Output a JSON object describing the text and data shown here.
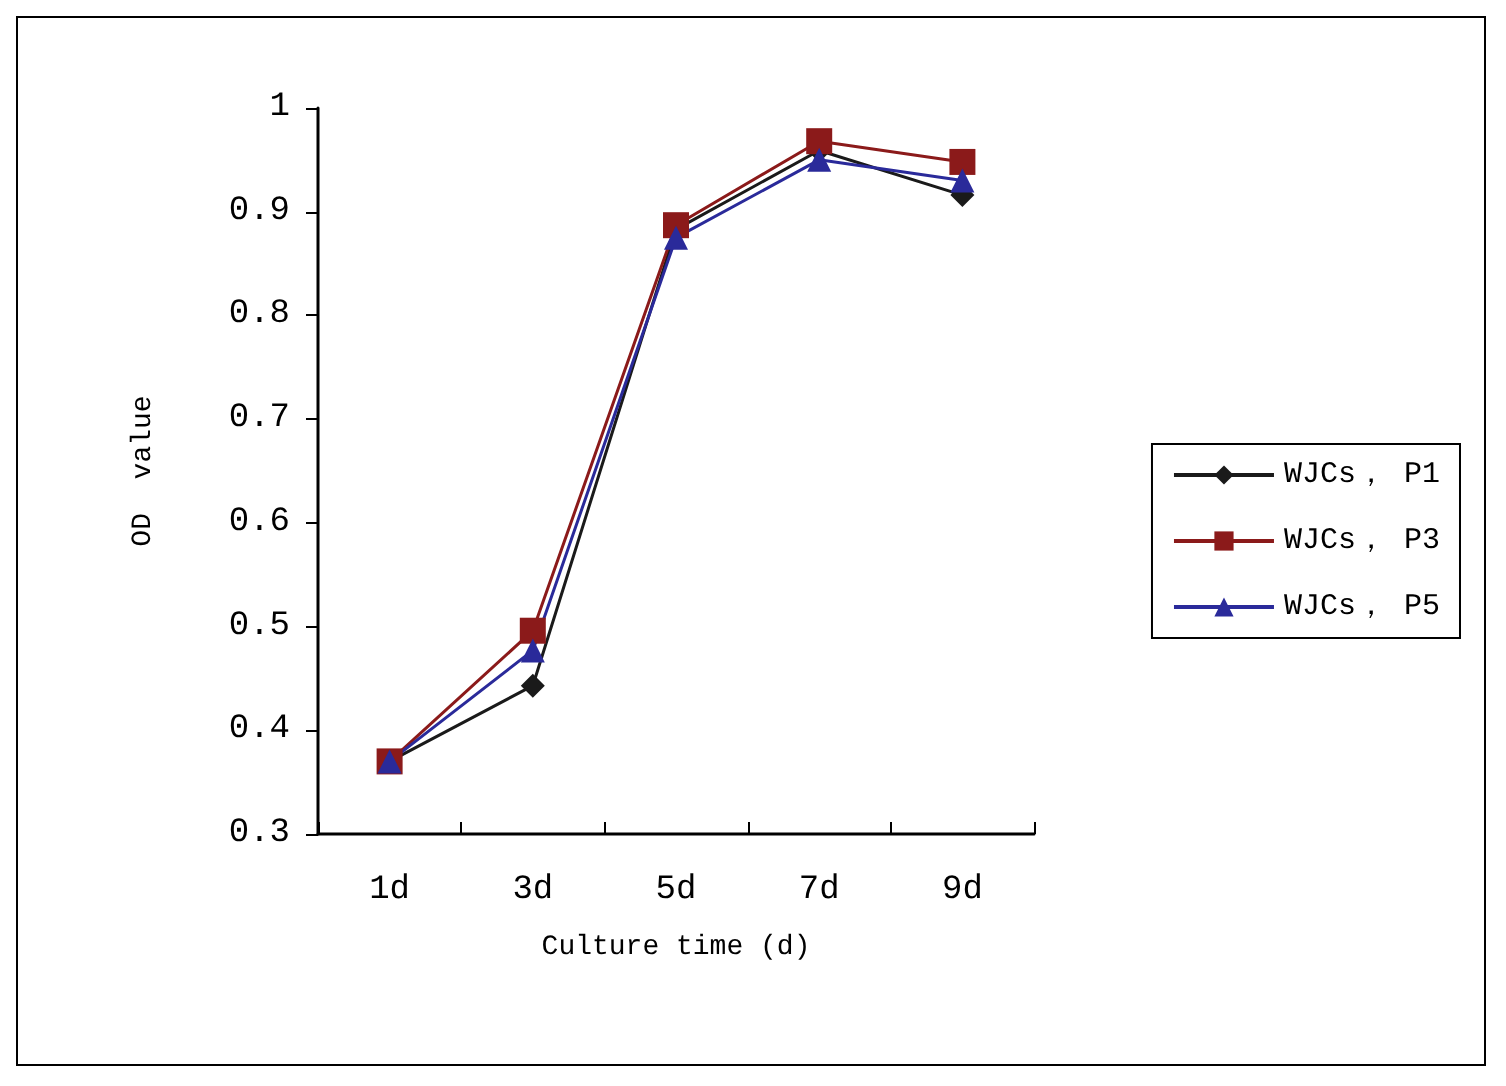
{
  "chart_data": {
    "type": "line",
    "xlabel": "Culture time (d)",
    "ylabel": "OD  value",
    "categories": [
      "1d",
      "3d",
      "5d",
      "7d",
      "9d"
    ],
    "series": [
      {
        "name": "WJCs， P1",
        "color": "#1a1a1a",
        "marker": "diamond",
        "values": [
          0.37,
          0.443,
          0.883,
          0.959,
          0.916
        ]
      },
      {
        "name": "WJCs， P3",
        "color": "#8b1a1a",
        "marker": "square",
        "values": [
          0.37,
          0.496,
          0.887,
          0.968,
          0.948
        ]
      },
      {
        "name": "WJCs， P5",
        "color": "#2a2a9a",
        "marker": "triangle",
        "values": [
          0.37,
          0.477,
          0.875,
          0.95,
          0.93
        ]
      }
    ],
    "ylim": [
      0.3,
      1
    ],
    "yticks": [
      0.3,
      0.4,
      0.5,
      0.6,
      0.7,
      0.8,
      0.9,
      1
    ],
    "grid": false,
    "legend": "right",
    "line_style": "solid"
  }
}
